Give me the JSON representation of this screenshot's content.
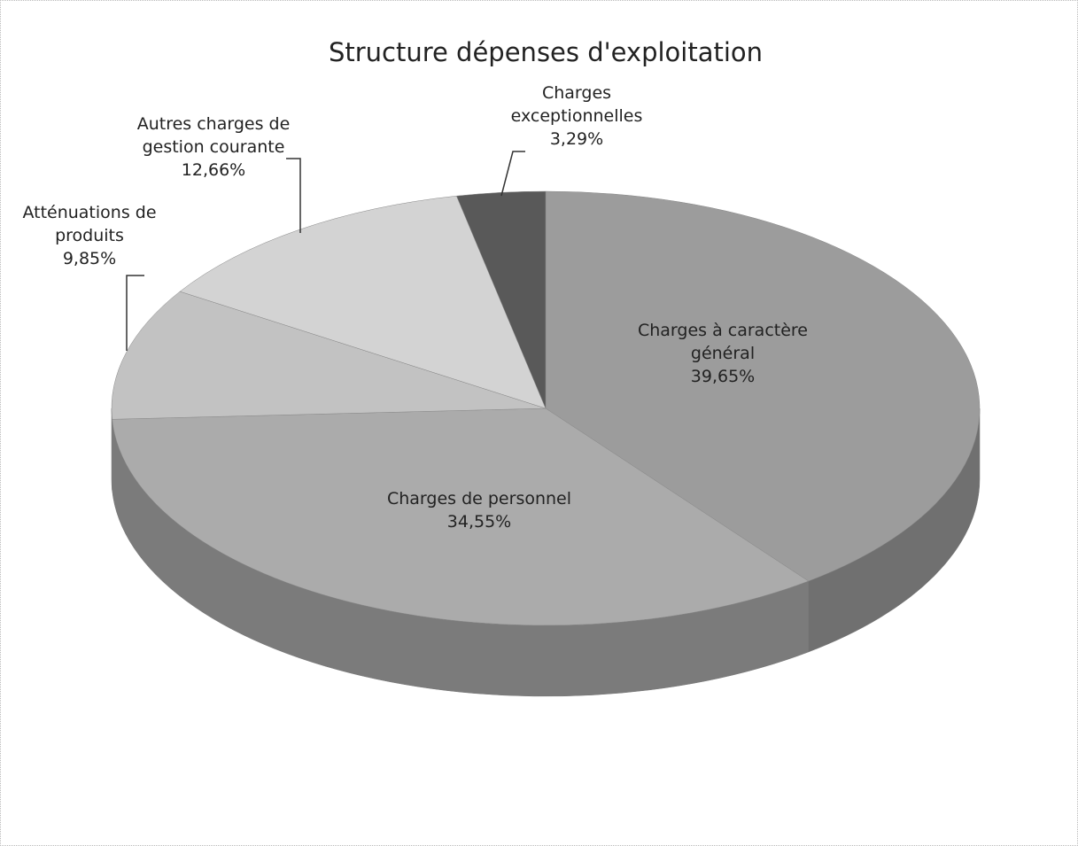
{
  "chart_data": {
    "type": "pie",
    "title": "Structure dépenses d'exploitation",
    "categories": [
      "Charges à caractère général",
      "Charges de personnel",
      "Atténuations de produits",
      "Autres charges de gestion courante",
      "Charges exceptionnelles"
    ],
    "values": [
      39.65,
      34.55,
      9.85,
      12.66,
      3.29
    ],
    "value_labels": [
      "39,65%",
      "34,55%",
      "9,85%",
      "12,66%",
      "3,29%"
    ],
    "colors": [
      "#9c9c9c",
      "#ababab",
      "#c2c2c2",
      "#d3d3d3",
      "#595959"
    ]
  }
}
